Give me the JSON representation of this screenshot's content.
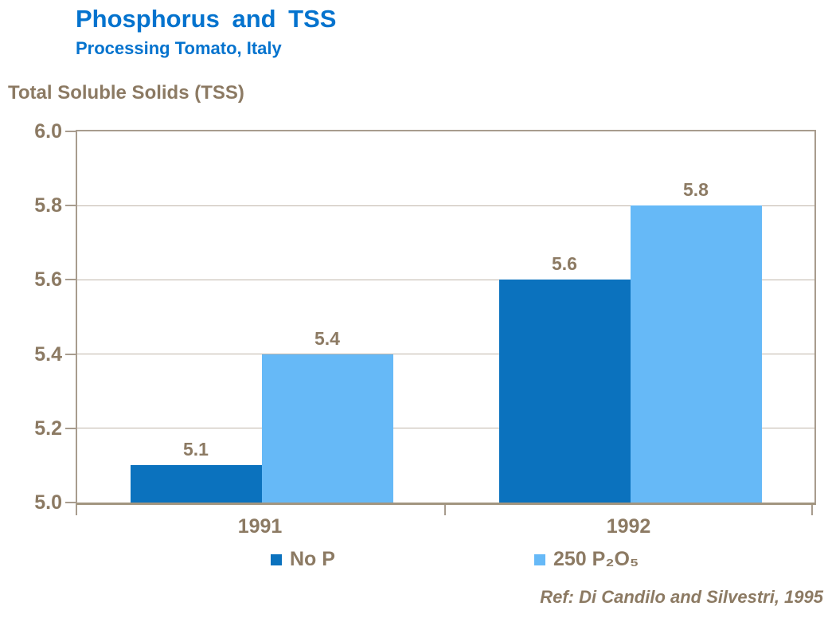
{
  "chart_data": {
    "type": "bar",
    "title": "Phosphorus and TSS",
    "subtitle": "Processing Tomato, Italy",
    "ylabel": "Total Soluble Solids (TSS)",
    "xlabel": "",
    "categories": [
      "1991",
      "1992"
    ],
    "series": [
      {
        "name": "No P",
        "color": "#0B72BE",
        "values": [
          5.1,
          5.6
        ]
      },
      {
        "name": "250 P₂O₅",
        "color": "#66B9F7",
        "values": [
          5.4,
          5.8
        ]
      }
    ],
    "data_labels": [
      "5.1",
      "5.4",
      "5.6",
      "5.8"
    ],
    "ylim": [
      5.0,
      6.0
    ],
    "yticks": [
      "5.0",
      "5.2",
      "5.4",
      "5.6",
      "5.8",
      "6.0"
    ],
    "grid": "horizontal gridlines on",
    "legend_position": "bottom",
    "reference": "Ref: Di Candilo and Silvestri, 1995",
    "colors": {
      "title_blue": "#0473CE",
      "label_brown": "#8C7A63",
      "axis_border": "#A89C8E",
      "gridline": "#C0B5A9"
    }
  }
}
